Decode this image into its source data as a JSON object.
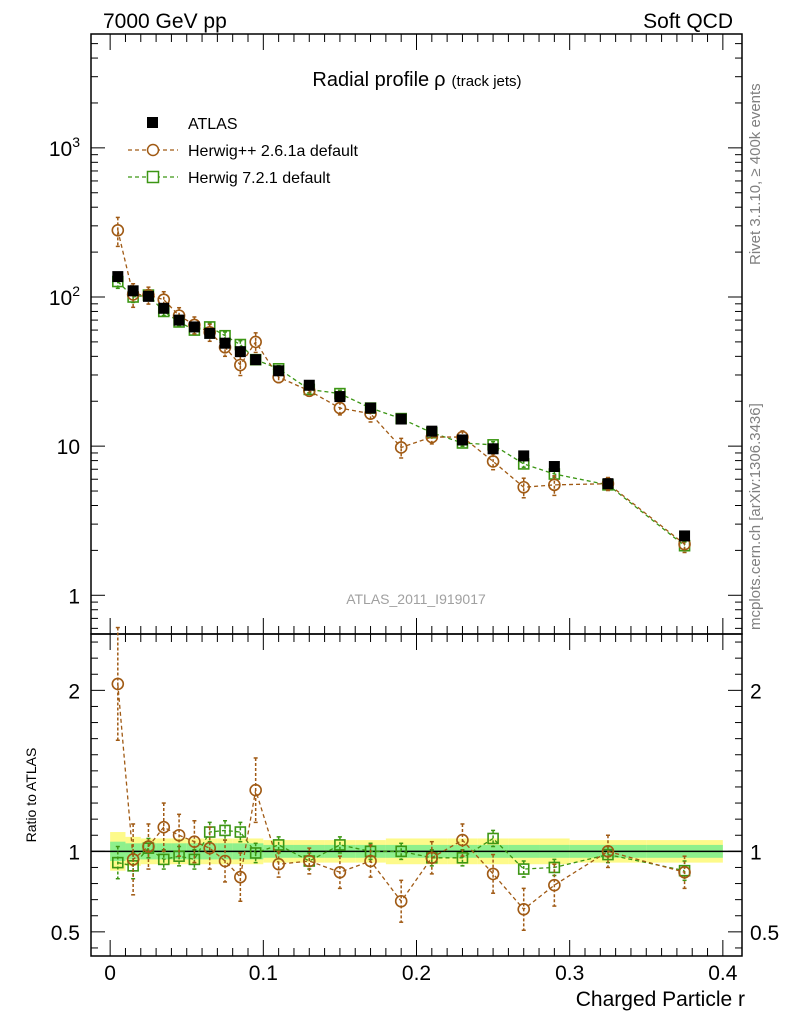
{
  "header": {
    "left": "7000 GeV pp",
    "right": "Soft QCD"
  },
  "side_labels": {
    "rivet": "Rivet 3.1.10, ≥ 400k events",
    "mcplots": "mcplots.cern.ch [arXiv:1306.3436]"
  },
  "chart_data": [
    {
      "type": "line",
      "title": "Radial profile",
      "title_symbol": "ρ",
      "title_suffix": "(track jets)",
      "watermark": "ATLAS_2011_I919017",
      "xlabel": "Charged Particle r",
      "ylabel": "",
      "yscale": "log",
      "xlim": [
        -0.0125,
        0.4125
      ],
      "ylim": [
        0.55,
        5800
      ],
      "y_ticks": [
        {
          "value": 1,
          "label": "1"
        },
        {
          "value": 10,
          "label": "10"
        },
        {
          "value": 100,
          "label": "10",
          "sup": "2"
        },
        {
          "value": 1000,
          "label": "10",
          "sup": "3"
        }
      ],
      "legend_position": "top-left",
      "colors": {
        "data": "#000000",
        "herwigpp": "#a05a14",
        "herwig7": "#3c9614"
      },
      "series": [
        {
          "name": "ATLAS",
          "key": "data",
          "marker": "filled-square",
          "x": [
            0.005,
            0.015,
            0.025,
            0.035,
            0.045,
            0.055,
            0.065,
            0.075,
            0.085,
            0.095,
            0.11,
            0.13,
            0.15,
            0.17,
            0.19,
            0.21,
            0.23,
            0.25,
            0.27,
            0.29,
            0.325,
            0.375
          ],
          "y": [
            137,
            110,
            101,
            84,
            70,
            63,
            57,
            49,
            43,
            38,
            32,
            25.6,
            21.5,
            18,
            15.2,
            12.6,
            11,
            9.6,
            8.6,
            7.3,
            5.6,
            2.5
          ]
        },
        {
          "name": "Herwig++ 2.6.1a default",
          "key": "herwigpp",
          "marker": "open-circle",
          "x": [
            0.005,
            0.015,
            0.025,
            0.035,
            0.045,
            0.055,
            0.065,
            0.075,
            0.085,
            0.095,
            0.11,
            0.13,
            0.15,
            0.17,
            0.19,
            0.21,
            0.23,
            0.25,
            0.27,
            0.29,
            0.325,
            0.375
          ],
          "y": [
            280,
            104,
            103,
            96,
            75,
            65,
            58,
            46,
            35,
            50,
            29,
            23.5,
            18,
            16.5,
            9.8,
            11.5,
            11.5,
            7.9,
            5.3,
            5.5,
            5.6,
            2.2
          ],
          "err": [
            0.22,
            0.18,
            0.13,
            0.13,
            0.13,
            0.13,
            0.13,
            0.13,
            0.15,
            0.15,
            0.08,
            0.08,
            0.1,
            0.12,
            0.15,
            0.1,
            0.1,
            0.12,
            0.15,
            0.15,
            0.1,
            0.12
          ]
        },
        {
          "name": "Herwig 7.2.1 default",
          "key": "herwig7",
          "marker": "open-square",
          "x": [
            0.005,
            0.015,
            0.025,
            0.035,
            0.045,
            0.055,
            0.065,
            0.075,
            0.085,
            0.095,
            0.11,
            0.13,
            0.15,
            0.17,
            0.19,
            0.21,
            0.23,
            0.25,
            0.27,
            0.29,
            0.325,
            0.375
          ],
          "y": [
            127,
            100,
            103,
            80,
            68,
            60,
            63,
            55,
            48,
            38,
            33,
            24,
            22.5,
            18,
            15.3,
            12.3,
            10.5,
            10.2,
            7.6,
            6.5,
            5.5,
            2.15
          ],
          "err": [
            0.1,
            0.08,
            0.06,
            0.06,
            0.06,
            0.06,
            0.06,
            0.06,
            0.06,
            0.06,
            0.05,
            0.05,
            0.05,
            0.05,
            0.05,
            0.05,
            0.05,
            0.05,
            0.05,
            0.05,
            0.05,
            0.06
          ]
        }
      ]
    },
    {
      "type": "line",
      "title": "",
      "ylabel": "Ratio to ATLAS",
      "xlabel": "Charged Particle r",
      "ylim": [
        0.35,
        2.35
      ],
      "xlim": [
        -0.0125,
        0.4125
      ],
      "x_ticks": [
        {
          "value": 0,
          "label": "0"
        },
        {
          "value": 0.1,
          "label": "0.1"
        },
        {
          "value": 0.2,
          "label": "0.2"
        },
        {
          "value": 0.3,
          "label": "0.3"
        },
        {
          "value": 0.4,
          "label": "0.4"
        }
      ],
      "y_ticks": [
        {
          "value": 0.5,
          "label": "0.5"
        },
        {
          "value": 1,
          "label": "1"
        },
        {
          "value": 2,
          "label": "2"
        }
      ],
      "uncertainty_band": {
        "x_edges": [
          0,
          0.01,
          0.02,
          0.03,
          0.04,
          0.05,
          0.06,
          0.07,
          0.08,
          0.09,
          0.1,
          0.12,
          0.14,
          0.16,
          0.18,
          0.2,
          0.22,
          0.24,
          0.26,
          0.28,
          0.3,
          0.35,
          0.4
        ],
        "inner": [
          0.06,
          0.05,
          0.05,
          0.05,
          0.05,
          0.05,
          0.05,
          0.05,
          0.05,
          0.05,
          0.04,
          0.04,
          0.04,
          0.04,
          0.04,
          0.04,
          0.04,
          0.04,
          0.04,
          0.04,
          0.04,
          0.04
        ],
        "outer": [
          0.12,
          0.09,
          0.08,
          0.08,
          0.08,
          0.08,
          0.08,
          0.08,
          0.08,
          0.08,
          0.07,
          0.07,
          0.07,
          0.07,
          0.08,
          0.08,
          0.08,
          0.08,
          0.08,
          0.08,
          0.07,
          0.07
        ]
      },
      "series": [
        {
          "name": "Herwig++ 2.6.1a default",
          "key": "herwigpp",
          "marker": "open-circle",
          "x": [
            0.005,
            0.015,
            0.025,
            0.035,
            0.045,
            0.055,
            0.065,
            0.075,
            0.085,
            0.095,
            0.11,
            0.13,
            0.15,
            0.17,
            0.19,
            0.21,
            0.23,
            0.25,
            0.27,
            0.29,
            0.325,
            0.375
          ],
          "y": [
            2.04,
            0.95,
            1.03,
            1.15,
            1.1,
            1.06,
            1.02,
            0.94,
            0.84,
            1.38,
            0.92,
            0.94,
            0.87,
            0.94,
            0.69,
            0.96,
            1.07,
            0.86,
            0.64,
            0.79,
            1.0,
            0.87
          ],
          "err": [
            0.35,
            0.22,
            0.14,
            0.15,
            0.13,
            0.13,
            0.13,
            0.13,
            0.15,
            0.2,
            0.08,
            0.08,
            0.1,
            0.1,
            0.13,
            0.1,
            0.1,
            0.12,
            0.13,
            0.13,
            0.1,
            0.1
          ]
        },
        {
          "name": "Herwig 7.2.1 default",
          "key": "herwig7",
          "marker": "open-square",
          "x": [
            0.005,
            0.015,
            0.025,
            0.035,
            0.045,
            0.055,
            0.065,
            0.075,
            0.085,
            0.095,
            0.11,
            0.13,
            0.15,
            0.17,
            0.19,
            0.21,
            0.23,
            0.25,
            0.27,
            0.29,
            0.325,
            0.375
          ],
          "y": [
            0.93,
            0.91,
            1.02,
            0.95,
            0.97,
            0.95,
            1.12,
            1.13,
            1.12,
            0.99,
            1.04,
            0.94,
            1.04,
            1.0,
            1.0,
            0.96,
            0.96,
            1.08,
            0.89,
            0.9,
            0.98,
            0.88
          ],
          "err": [
            0.1,
            0.08,
            0.06,
            0.06,
            0.06,
            0.06,
            0.06,
            0.06,
            0.06,
            0.06,
            0.05,
            0.05,
            0.05,
            0.05,
            0.05,
            0.05,
            0.05,
            0.05,
            0.05,
            0.05,
            0.05,
            0.06
          ]
        }
      ]
    }
  ]
}
